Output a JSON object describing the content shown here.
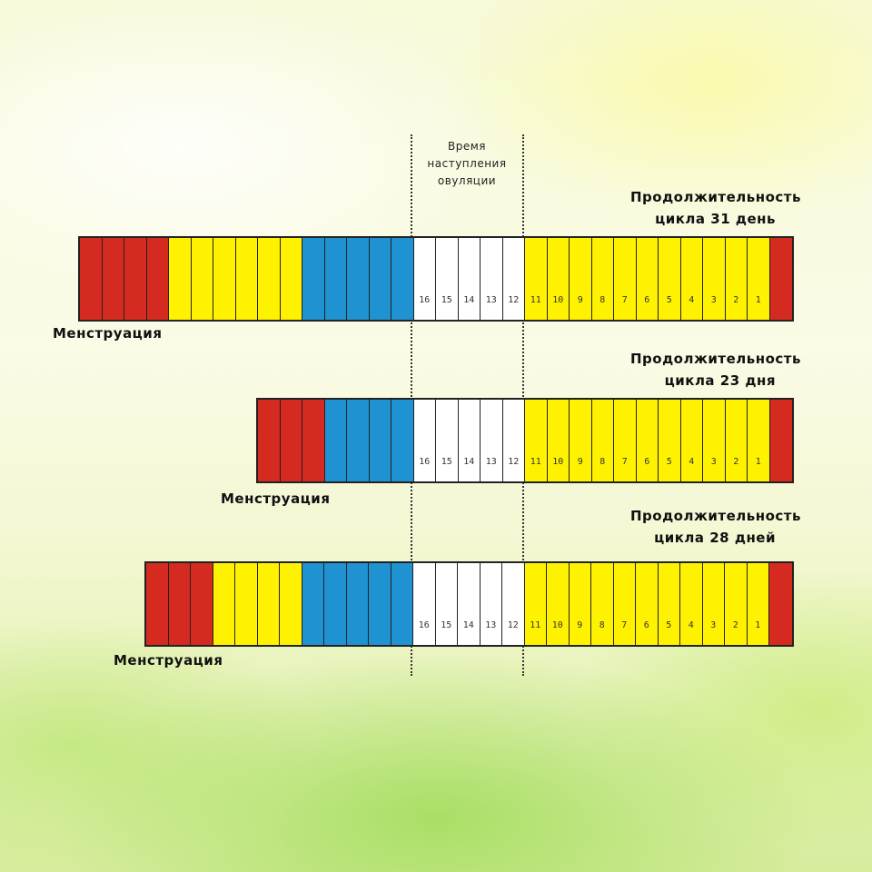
{
  "ovulation_label": [
    "Время",
    "наступления",
    "овуляции"
  ],
  "colors": {
    "menstruation": "#d42a1f",
    "infertile": "#fff200",
    "pre_ovulation": "#1f92d1",
    "ovulation_window": "#ffffff"
  },
  "charts": [
    {
      "title_line1": "Продолжительность",
      "title_line2": "цикла 31 день",
      "menstruation_label": "Менструация",
      "cells": [
        [
          "red",
          ""
        ],
        [
          "red",
          ""
        ],
        [
          "red",
          ""
        ],
        [
          "red",
          ""
        ],
        [
          "yellow",
          ""
        ],
        [
          "yellow",
          ""
        ],
        [
          "yellow",
          ""
        ],
        [
          "yellow",
          ""
        ],
        [
          "yellow",
          ""
        ],
        [
          "yellow",
          ""
        ],
        [
          "blue",
          ""
        ],
        [
          "blue",
          ""
        ],
        [
          "blue",
          ""
        ],
        [
          "blue",
          ""
        ],
        [
          "blue",
          ""
        ],
        [
          "white",
          "16"
        ],
        [
          "white",
          "15"
        ],
        [
          "white",
          "14"
        ],
        [
          "white",
          "13"
        ],
        [
          "white",
          "12"
        ],
        [
          "yellow",
          "11"
        ],
        [
          "yellow",
          "10"
        ],
        [
          "yellow",
          "9"
        ],
        [
          "yellow",
          "8"
        ],
        [
          "yellow",
          "7"
        ],
        [
          "yellow",
          "6"
        ],
        [
          "yellow",
          "5"
        ],
        [
          "yellow",
          "4"
        ],
        [
          "yellow",
          "3"
        ],
        [
          "yellow",
          "2"
        ],
        [
          "yellow",
          "1"
        ],
        [
          "red",
          ""
        ]
      ]
    },
    {
      "title_line1": "Продолжительность",
      "title_line2": "цикла 23 дня",
      "menstruation_label": "Менструация",
      "cells": [
        [
          "red",
          ""
        ],
        [
          "red",
          ""
        ],
        [
          "red",
          ""
        ],
        [
          "blue",
          ""
        ],
        [
          "blue",
          ""
        ],
        [
          "blue",
          ""
        ],
        [
          "blue",
          ""
        ],
        [
          "white",
          "16"
        ],
        [
          "white",
          "15"
        ],
        [
          "white",
          "14"
        ],
        [
          "white",
          "13"
        ],
        [
          "white",
          "12"
        ],
        [
          "yellow",
          "11"
        ],
        [
          "yellow",
          "10"
        ],
        [
          "yellow",
          "9"
        ],
        [
          "yellow",
          "8"
        ],
        [
          "yellow",
          "7"
        ],
        [
          "yellow",
          "6"
        ],
        [
          "yellow",
          "5"
        ],
        [
          "yellow",
          "4"
        ],
        [
          "yellow",
          "3"
        ],
        [
          "yellow",
          "2"
        ],
        [
          "yellow",
          "1"
        ],
        [
          "red",
          ""
        ]
      ]
    },
    {
      "title_line1": "Продолжительность",
      "title_line2": "цикла 28 дней",
      "menstruation_label": "Менструация",
      "cells": [
        [
          "red",
          ""
        ],
        [
          "red",
          ""
        ],
        [
          "red",
          ""
        ],
        [
          "yellow",
          ""
        ],
        [
          "yellow",
          ""
        ],
        [
          "yellow",
          ""
        ],
        [
          "yellow",
          ""
        ],
        [
          "blue",
          ""
        ],
        [
          "blue",
          ""
        ],
        [
          "blue",
          ""
        ],
        [
          "blue",
          ""
        ],
        [
          "blue",
          ""
        ],
        [
          "white",
          "16"
        ],
        [
          "white",
          "15"
        ],
        [
          "white",
          "14"
        ],
        [
          "white",
          "13"
        ],
        [
          "white",
          "12"
        ],
        [
          "yellow",
          "11"
        ],
        [
          "yellow",
          "10"
        ],
        [
          "yellow",
          "9"
        ],
        [
          "yellow",
          "8"
        ],
        [
          "yellow",
          "7"
        ],
        [
          "yellow",
          "6"
        ],
        [
          "yellow",
          "5"
        ],
        [
          "yellow",
          "4"
        ],
        [
          "yellow",
          "3"
        ],
        [
          "yellow",
          "2"
        ],
        [
          "yellow",
          "1"
        ],
        [
          "red",
          ""
        ]
      ]
    }
  ]
}
